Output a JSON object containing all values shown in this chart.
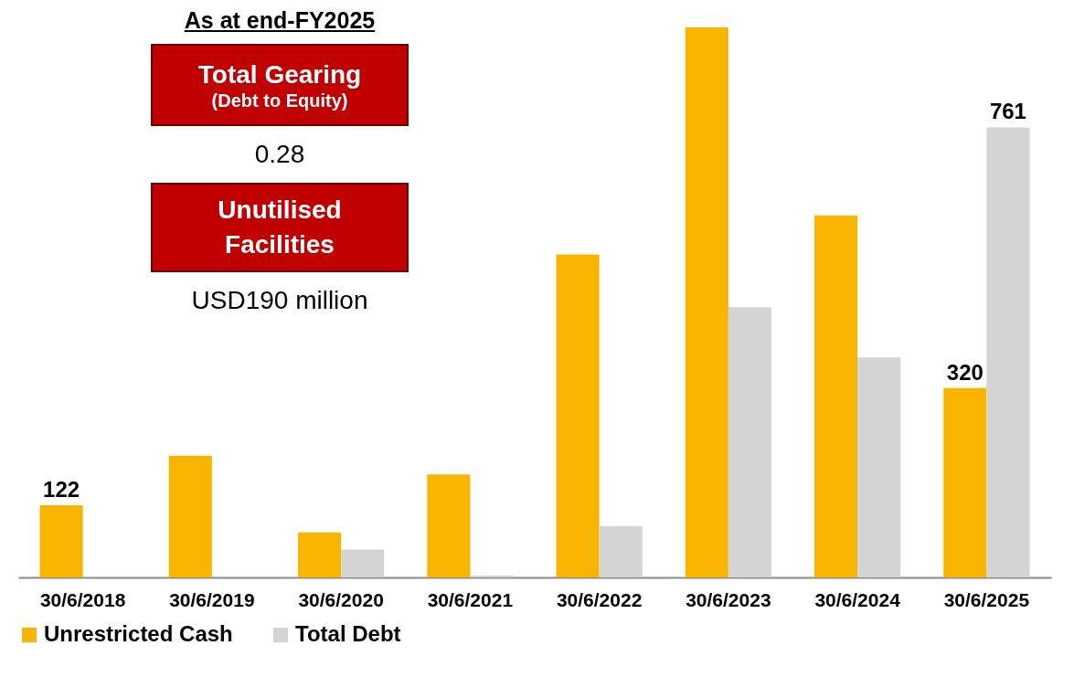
{
  "chart_data": {
    "type": "bar",
    "categories": [
      "30/6/2018",
      "30/6/2019",
      "30/6/2020",
      "30/6/2021",
      "30/6/2022",
      "30/6/2023",
      "30/6/2024",
      "30/6/2025"
    ],
    "series": [
      {
        "name": "Unrestricted Cash",
        "color": "#f7b500",
        "values": [
          122,
          206,
          76,
          174,
          546,
          930,
          612,
          320
        ],
        "value_labels": [
          "122",
          null,
          null,
          null,
          null,
          null,
          null,
          "320"
        ]
      },
      {
        "name": "Total Debt",
        "color": "#d4d4d4",
        "values": [
          null,
          null,
          47,
          3,
          87,
          457,
          372,
          761
        ],
        "value_labels": [
          null,
          null,
          null,
          null,
          null,
          null,
          null,
          "761"
        ]
      }
    ],
    "annotations": [
      "As at end-FY2025",
      "Total Gearing",
      "(Debt to Equity)",
      "0.28",
      "Unutilised Facilities",
      "USD190 million"
    ],
    "legend": "bottom",
    "grid": false
  }
}
